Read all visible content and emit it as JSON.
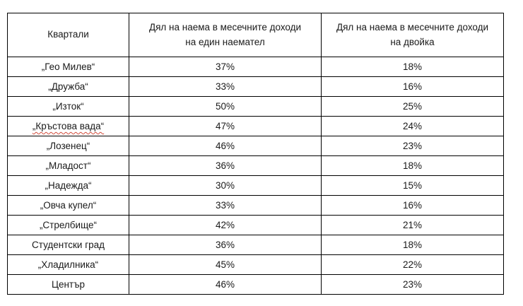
{
  "table": {
    "headers": [
      "Квартали",
      "Дял на наема в месечните доходи\nна един наемател",
      "Дял на наема в месечните доходи\nна двойка"
    ],
    "rows": [
      {
        "district": "„Гео Милев“",
        "single": "37%",
        "couple": "18%"
      },
      {
        "district": "„Дружба“",
        "single": "33%",
        "couple": "16%"
      },
      {
        "district": "„Изток“",
        "single": "50%",
        "couple": "25%"
      },
      {
        "district": "„Кръстова вада“",
        "single": "47%",
        "couple": "24%",
        "spellcheck_underline": true
      },
      {
        "district": "„Лозенец“",
        "single": "46%",
        "couple": "23%"
      },
      {
        "district": "„Младост“",
        "single": "36%",
        "couple": "18%"
      },
      {
        "district": "„Надежда“",
        "single": "30%",
        "couple": "15%"
      },
      {
        "district": "„Овча купел“",
        "single": "33%",
        "couple": "16%"
      },
      {
        "district": "„Стрелбище“",
        "single": "42%",
        "couple": "21%"
      },
      {
        "district": "Студентски град",
        "single": "36%",
        "couple": "18%"
      },
      {
        "district": "„Хладилника“",
        "single": "45%",
        "couple": "22%"
      },
      {
        "district": "Център",
        "single": "46%",
        "couple": "23%"
      }
    ]
  },
  "chart_data": {
    "type": "table",
    "title": "",
    "categories": [
      "„Гео Милев“",
      "„Дружба“",
      "„Изток“",
      "„Кръстова вада“",
      "„Лозенец“",
      "„Младост“",
      "„Надежда“",
      "„Овча купел“",
      "„Стрелбище“",
      "Студентски град",
      "„Хладилника“",
      "Център"
    ],
    "series": [
      {
        "name": "Дял на наема в месечните доходи на един наемател",
        "values": [
          37,
          33,
          50,
          47,
          46,
          36,
          30,
          33,
          42,
          36,
          45,
          46
        ]
      },
      {
        "name": "Дял на наема в месечните доходи на двойка",
        "values": [
          18,
          16,
          25,
          24,
          23,
          18,
          15,
          16,
          21,
          18,
          22,
          23
        ]
      }
    ],
    "unit": "%"
  }
}
